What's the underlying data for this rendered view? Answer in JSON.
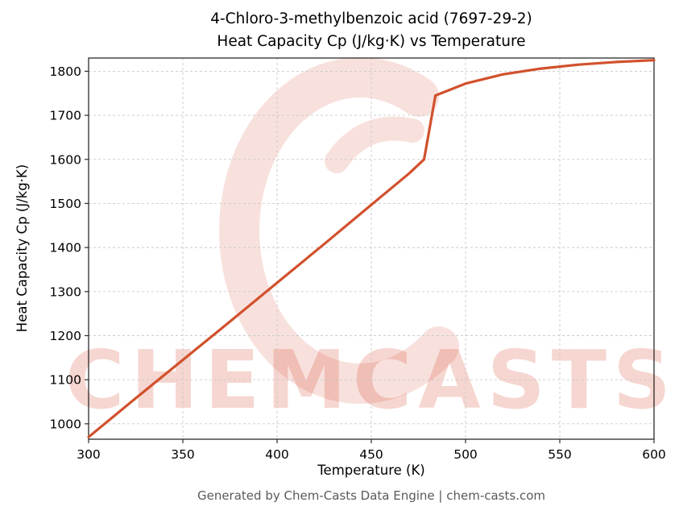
{
  "title": {
    "line1": "4-Chloro-3-methylbenzoic acid (7697-29-2)",
    "line2": "Heat Capacity Cp (J/kg·K) vs Temperature"
  },
  "footer": "Generated by Chem-Casts Data Engine | chem-casts.com",
  "watermark": {
    "text": "CHEMCASTS"
  },
  "colors": {
    "line": "#d1512d",
    "watermark": "rgba(214,69,42,0.22)",
    "grid": "#c9c9c9",
    "axis": "#2b2b2b"
  },
  "chart_data": {
    "type": "line",
    "title": "4-Chloro-3-methylbenzoic acid (7697-29-2)\nHeat Capacity Cp (J/kg·K) vs Temperature",
    "xlabel": "Temperature (K)",
    "ylabel": "Heat Capacity Cp (J/kg·K)",
    "xlim": [
      300,
      600
    ],
    "ylim": [
      965,
      1830
    ],
    "xticks": [
      300,
      350,
      400,
      450,
      500,
      550,
      600
    ],
    "yticks": [
      1000,
      1100,
      1200,
      1300,
      1400,
      1500,
      1600,
      1700,
      1800
    ],
    "grid": true,
    "legend": false,
    "series": [
      {
        "name": "Heat Capacity Cp",
        "x": [
          300,
          325,
          350,
          375,
          400,
          425,
          450,
          470,
          478,
          484,
          500,
          520,
          540,
          560,
          580,
          600
        ],
        "y": [
          970,
          1058,
          1145,
          1232,
          1320,
          1408,
          1497,
          1568,
          1600,
          1745,
          1772,
          1793,
          1806,
          1815,
          1821,
          1825
        ]
      }
    ]
  }
}
